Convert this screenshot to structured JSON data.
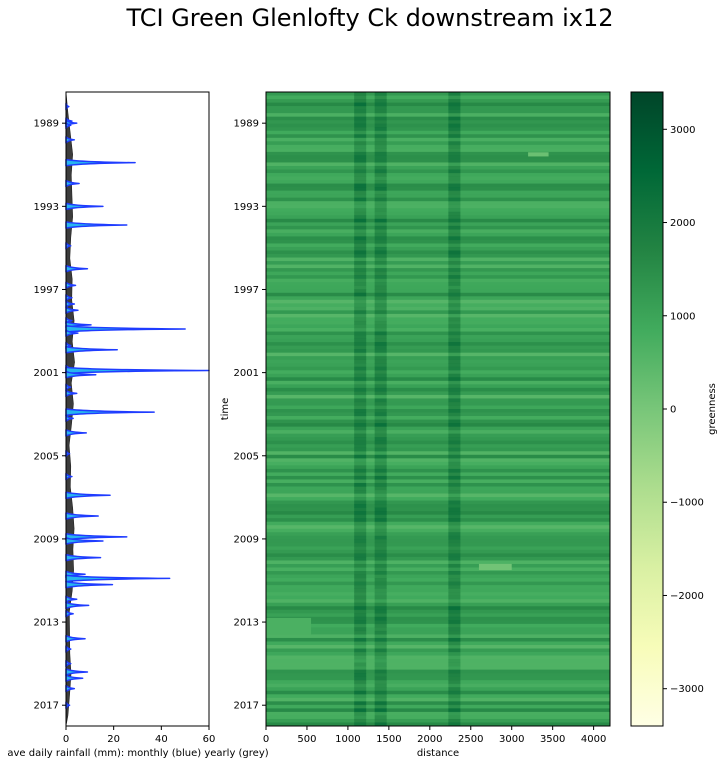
{
  "chart_data": [
    {
      "type": "area",
      "title": "TCI Green Glenlofty Ck downstream ix12",
      "xlabel": "ave daily rainfall (mm): monthly (blue) yearly (grey)",
      "ylabel": "",
      "xlim": [
        0,
        60
      ],
      "x_ticks": [
        "0",
        "20",
        "40",
        "60"
      ],
      "ylim": [
        1987.5,
        2018.0
      ],
      "y_ticks": [
        "1989",
        "1993",
        "1997",
        "2001",
        "2005",
        "2009",
        "2013",
        "2017"
      ],
      "series": [
        {
          "name": "monthly",
          "color": "#1f3cff",
          "fill": "#27b5ee",
          "points": [
            [
              1988.2,
              1.2
            ],
            [
              1988.9,
              2.5
            ],
            [
              1989.0,
              4.5
            ],
            [
              1989.1,
              2.0
            ],
            [
              1989.8,
              3.5
            ],
            [
              1990.9,
              29.0
            ],
            [
              1991.9,
              5.5
            ],
            [
              1993.0,
              15.5
            ],
            [
              1993.9,
              25.5
            ],
            [
              1994.9,
              2.0
            ],
            [
              1996.0,
              9.0
            ],
            [
              1996.8,
              4.0
            ],
            [
              1997.4,
              2.5
            ],
            [
              1997.7,
              3.5
            ],
            [
              1998.0,
              5.0
            ],
            [
              1998.5,
              2.5
            ],
            [
              1998.7,
              10.5
            ],
            [
              1998.9,
              50.0
            ],
            [
              1999.1,
              5.0
            ],
            [
              1999.7,
              2.0
            ],
            [
              1999.9,
              21.5
            ],
            [
              2000.8,
              3.0
            ],
            [
              2000.9,
              60.0
            ],
            [
              2001.1,
              12.5
            ],
            [
              2001.7,
              2.0
            ],
            [
              2002.0,
              4.5
            ],
            [
              2002.9,
              37.0
            ],
            [
              2003.2,
              3.0
            ],
            [
              2003.9,
              8.5
            ],
            [
              2004.9,
              1.5
            ],
            [
              2006.0,
              2.5
            ],
            [
              2006.9,
              18.5
            ],
            [
              2007.9,
              13.5
            ],
            [
              2008.9,
              25.5
            ],
            [
              2009.1,
              15.5
            ],
            [
              2009.9,
              14.5
            ],
            [
              2010.7,
              8.0
            ],
            [
              2010.9,
              43.5
            ],
            [
              2011.2,
              19.5
            ],
            [
              2011.9,
              4.5
            ],
            [
              2012.2,
              9.5
            ],
            [
              2012.6,
              3.0
            ],
            [
              2013.8,
              8.0
            ],
            [
              2014.3,
              2.0
            ],
            [
              2015.0,
              2.0
            ],
            [
              2015.4,
              9.0
            ],
            [
              2015.7,
              7.0
            ],
            [
              2016.2,
              3.5
            ],
            [
              2017.0,
              1.5
            ]
          ]
        },
        {
          "name": "yearly",
          "color": "#3c3c3c",
          "values": [
            [
              1988.5,
              0.8
            ],
            [
              1989.5,
              1.8
            ],
            [
              1990.5,
              2.8
            ],
            [
              1991.5,
              2.2
            ],
            [
              1992.5,
              2.5
            ],
            [
              1993.5,
              2.8
            ],
            [
              1994.5,
              2.0
            ],
            [
              1995.5,
              1.6
            ],
            [
              1996.5,
              2.6
            ],
            [
              1997.5,
              2.4
            ],
            [
              1998.5,
              3.4
            ],
            [
              1999.5,
              2.6
            ],
            [
              2000.5,
              3.6
            ],
            [
              2001.5,
              2.2
            ],
            [
              2002.5,
              3.1
            ],
            [
              2003.5,
              2.3
            ],
            [
              2004.5,
              1.3
            ],
            [
              2005.5,
              2.0
            ],
            [
              2006.5,
              1.8
            ],
            [
              2007.5,
              2.8
            ],
            [
              2008.5,
              3.4
            ],
            [
              2009.5,
              2.9
            ],
            [
              2010.5,
              3.2
            ],
            [
              2011.5,
              2.6
            ],
            [
              2012.5,
              1.4
            ],
            [
              2013.5,
              1.5
            ],
            [
              2014.5,
              1.6
            ],
            [
              2015.5,
              2.1
            ],
            [
              2016.5,
              1.5
            ],
            [
              2017.5,
              0.8
            ]
          ]
        }
      ]
    },
    {
      "type": "heatmap",
      "title": "",
      "xlabel": "distance",
      "ylabel": "time",
      "xlim": [
        0,
        4200
      ],
      "x_ticks": [
        "0",
        "500",
        "1000",
        "1500",
        "2000",
        "2500",
        "3000",
        "3500",
        "4000"
      ],
      "ylim": [
        1987.5,
        2018.0
      ],
      "y_ticks": [
        "1989",
        "1993",
        "1997",
        "2001",
        "2005",
        "2009",
        "2013",
        "2017"
      ],
      "colorbar_label": "greenness",
      "colorbar_range": [
        -3400,
        3400
      ],
      "colorbar_ticks": [
        "3000",
        "2000",
        "1000",
        "0",
        "−1000",
        "−2000",
        "−3000"
      ],
      "colormap": [
        "#ffffe5",
        "#f7fcb9",
        "#d9f0a3",
        "#addd8e",
        "#78c679",
        "#41ab5d",
        "#238443",
        "#006837",
        "#004529"
      ],
      "value_range_shown": [
        500,
        1600
      ],
      "darker_stripes_at_distance": [
        1150,
        1400,
        2300
      ],
      "notable_patches": [
        {
          "distance": [
            0,
            550
          ],
          "time": [
            2012.8,
            2013.6
          ],
          "value": 700
        },
        {
          "distance": [
            2600,
            3000
          ],
          "time": [
            2010.2,
            2010.5
          ],
          "value": 100
        },
        {
          "distance": [
            3200,
            3450
          ],
          "time": [
            1990.4,
            1990.6
          ],
          "value": 200
        }
      ]
    }
  ]
}
